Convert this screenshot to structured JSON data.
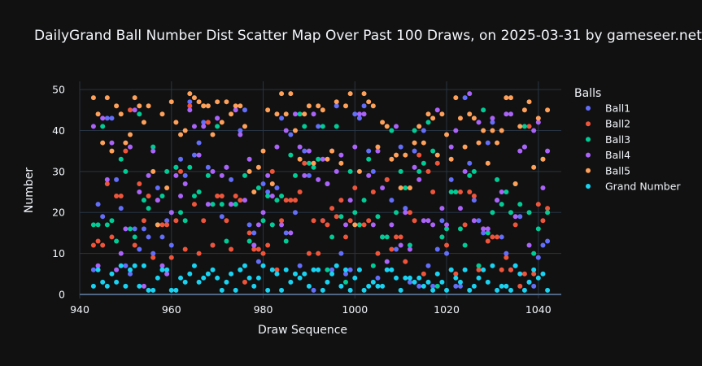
{
  "chart_data": {
    "type": "scatter",
    "title": "DailyGrand Ball Number Dist Scatter Map Over Past 100 Draws, on 2025-03-31 by gameseer.net",
    "xlabel": "Draw Sequence",
    "ylabel": "Number",
    "xlim": [
      940,
      1045
    ],
    "ylim": [
      -1,
      52
    ],
    "xticks": [
      940,
      960,
      980,
      1000,
      1020,
      1040
    ],
    "yticks": [
      0,
      10,
      20,
      30,
      40,
      50
    ],
    "grid": true,
    "legend_title": "Balls",
    "legend_position": "right",
    "x": [
      943,
      944,
      945,
      946,
      947,
      948,
      949,
      950,
      951,
      952,
      953,
      954,
      955,
      956,
      957,
      958,
      959,
      960,
      961,
      962,
      963,
      964,
      965,
      966,
      967,
      968,
      969,
      970,
      971,
      972,
      973,
      974,
      975,
      976,
      977,
      978,
      979,
      980,
      981,
      982,
      983,
      984,
      985,
      986,
      987,
      988,
      989,
      990,
      991,
      992,
      993,
      994,
      995,
      996,
      997,
      998,
      999,
      1000,
      1001,
      1002,
      1003,
      1004,
      1005,
      1006,
      1007,
      1008,
      1009,
      1010,
      1011,
      1012,
      1013,
      1014,
      1015,
      1016,
      1017,
      1018,
      1019,
      1020,
      1021,
      1022,
      1023,
      1024,
      1025,
      1026,
      1027,
      1028,
      1029,
      1030,
      1031,
      1032,
      1033,
      1034,
      1035,
      1036,
      1037,
      1038,
      1039,
      1040,
      1041,
      1042
    ],
    "series": [
      {
        "name": "Ball1",
        "color": "#636efa",
        "values": [
          6,
          22,
          19,
          43,
          43,
          28,
          21,
          7,
          5,
          16,
          11,
          16,
          14,
          10,
          26,
          14,
          18,
          12,
          31,
          33,
          29,
          47,
          34,
          37,
          42,
          31,
          12,
          43,
          19,
          31,
          28,
          22,
          40,
          45,
          17,
          15,
          8,
          27,
          25,
          17,
          26,
          43,
          15,
          39,
          20,
          7,
          35,
          29,
          1,
          41,
          18,
          27,
          6,
          46,
          10,
          5,
          6,
          44,
          43,
          46,
          35,
          30,
          4,
          14,
          28,
          23,
          11,
          36,
          21,
          3,
          35,
          2,
          40,
          7,
          2,
          11,
          18,
          10,
          28,
          2,
          2,
          48,
          32,
          23,
          18,
          15,
          37,
          42,
          23,
          14,
          10,
          6,
          7,
          19,
          36,
          3,
          2,
          9,
          12,
          13
        ]
      },
      {
        "name": "Ball2",
        "color": "#ef553b",
        "values": [
          12,
          13,
          12,
          27,
          14,
          24,
          24,
          35,
          45,
          12,
          27,
          18,
          24,
          9,
          23,
          17,
          17,
          9,
          18,
          30,
          11,
          46,
          22,
          10,
          18,
          42,
          12,
          24,
          24,
          18,
          11,
          24,
          23,
          3,
          15,
          11,
          11,
          10,
          12,
          30,
          6,
          18,
          23,
          23,
          23,
          25,
          32,
          10,
          18,
          10,
          18,
          17,
          21,
          19,
          23,
          14,
          18,
          26,
          17,
          17,
          18,
          25,
          10,
          14,
          28,
          11,
          14,
          14,
          8,
          20,
          18,
          34,
          5,
          30,
          25,
          32,
          14,
          12,
          6,
          5,
          25,
          17,
          25,
          24,
          6,
          16,
          13,
          14,
          14,
          6,
          9,
          6,
          17,
          2,
          5,
          41,
          5,
          22,
          18,
          21
        ]
      },
      {
        "name": "Ball3",
        "color": "#00cc96",
        "values": [
          17,
          17,
          41,
          17,
          18,
          13,
          33,
          30,
          16,
          14,
          44,
          23,
          21,
          36,
          17,
          24,
          30,
          20,
          31,
          20,
          18,
          31,
          24,
          25,
          46,
          29,
          22,
          41,
          22,
          13,
          22,
          22,
          6,
          29,
          13,
          12,
          26,
          18,
          24,
          17,
          23,
          24,
          13,
          34,
          29,
          44,
          41,
          32,
          31,
          33,
          41,
          6,
          14,
          41,
          19,
          3,
          30,
          20,
          17,
          23,
          33,
          7,
          19,
          14,
          14,
          40,
          20,
          30,
          26,
          12,
          40,
          30,
          32,
          42,
          35,
          2,
          14,
          16,
          25,
          25,
          16,
          12,
          29,
          30,
          7,
          45,
          15,
          20,
          28,
          22,
          25,
          20,
          27,
          22,
          41,
          20,
          10,
          16,
          33,
          20
        ]
      },
      {
        "name": "Ball4",
        "color": "#ab63fa",
        "values": [
          41,
          7,
          43,
          28,
          37,
          6,
          10,
          16,
          36,
          45,
          25,
          2,
          29,
          35,
          23,
          7,
          5,
          20,
          29,
          24,
          27,
          45,
          41,
          34,
          41,
          22,
          30,
          43,
          29,
          31,
          22,
          45,
          39,
          23,
          33,
          12,
          17,
          20,
          29,
          24,
          36,
          17,
          40,
          15,
          44,
          36,
          29,
          35,
          44,
          28,
          33,
          27,
          35,
          30,
          34,
          17,
          23,
          36,
          44,
          44,
          29,
          17,
          35,
          26,
          8,
          17,
          41,
          12,
          20,
          11,
          31,
          28,
          18,
          18,
          17,
          45,
          21,
          17,
          36,
          40,
          21,
          30,
          49,
          18,
          42,
          16,
          16,
          43,
          23,
          25,
          44,
          44,
          19,
          35,
          36,
          12,
          40,
          42,
          26,
          35
        ]
      },
      {
        "name": "Ball5",
        "color": "#ffa15a",
        "values": [
          48,
          44,
          37,
          48,
          35,
          46,
          44,
          37,
          39,
          48,
          46,
          42,
          46,
          30,
          17,
          44,
          26,
          47,
          42,
          39,
          40,
          49,
          48,
          47,
          46,
          46,
          39,
          47,
          42,
          47,
          44,
          46,
          46,
          41,
          30,
          25,
          31,
          35,
          45,
          27,
          44,
          49,
          44,
          49,
          40,
          33,
          44,
          46,
          32,
          46,
          45,
          33,
          35,
          47,
          32,
          46,
          49,
          17,
          30,
          49,
          47,
          46,
          36,
          42,
          41,
          33,
          34,
          26,
          34,
          26,
          37,
          41,
          37,
          44,
          43,
          34,
          44,
          39,
          33,
          48,
          43,
          36,
          44,
          43,
          37,
          40,
          32,
          40,
          37,
          40,
          48,
          48,
          27,
          41,
          45,
          47,
          31,
          43,
          33,
          45
        ]
      },
      {
        "name": "Grand Number",
        "color": "#19d3f3",
        "values": [
          2,
          6,
          3,
          2,
          5,
          3,
          7,
          2,
          6,
          7,
          2,
          7,
          1,
          1,
          4,
          6,
          6,
          1,
          1,
          4,
          3,
          5,
          7,
          3,
          4,
          5,
          6,
          4,
          1,
          3,
          5,
          1,
          6,
          7,
          4,
          2,
          4,
          7,
          1,
          6,
          5,
          1,
          6,
          3,
          5,
          4,
          5,
          2,
          6,
          6,
          1,
          3,
          5,
          7,
          2,
          6,
          1,
          4,
          6,
          1,
          2,
          3,
          2,
          2,
          6,
          6,
          4,
          1,
          4,
          4,
          3,
          4,
          2,
          3,
          1,
          5,
          3,
          1,
          6,
          4,
          3,
          6,
          1,
          2,
          4,
          6,
          3,
          7,
          1,
          2,
          2,
          1,
          7,
          5,
          1,
          3,
          6,
          4,
          5,
          1
        ]
      }
    ]
  }
}
